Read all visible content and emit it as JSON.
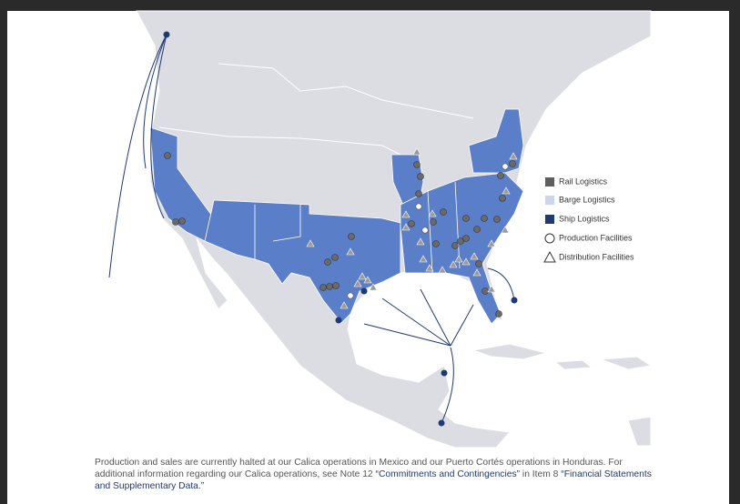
{
  "legend": {
    "items": [
      "Rail Logistics",
      "Barge Logistics",
      "Ship Logistics",
      "Production Facilities",
      "Distribution Facilities"
    ]
  },
  "caption": {
    "parts": [
      "Production and sales are currently halted at our Calica operations in Mexico and our Puerto Cortés operations in Honduras. For additional information regarding our Calica operations, see Note 12 ",
      "“Commitments and Contingencies”",
      " in Item 8 ",
      "“Financial Statements and Supplementary Data.”"
    ]
  }
}
